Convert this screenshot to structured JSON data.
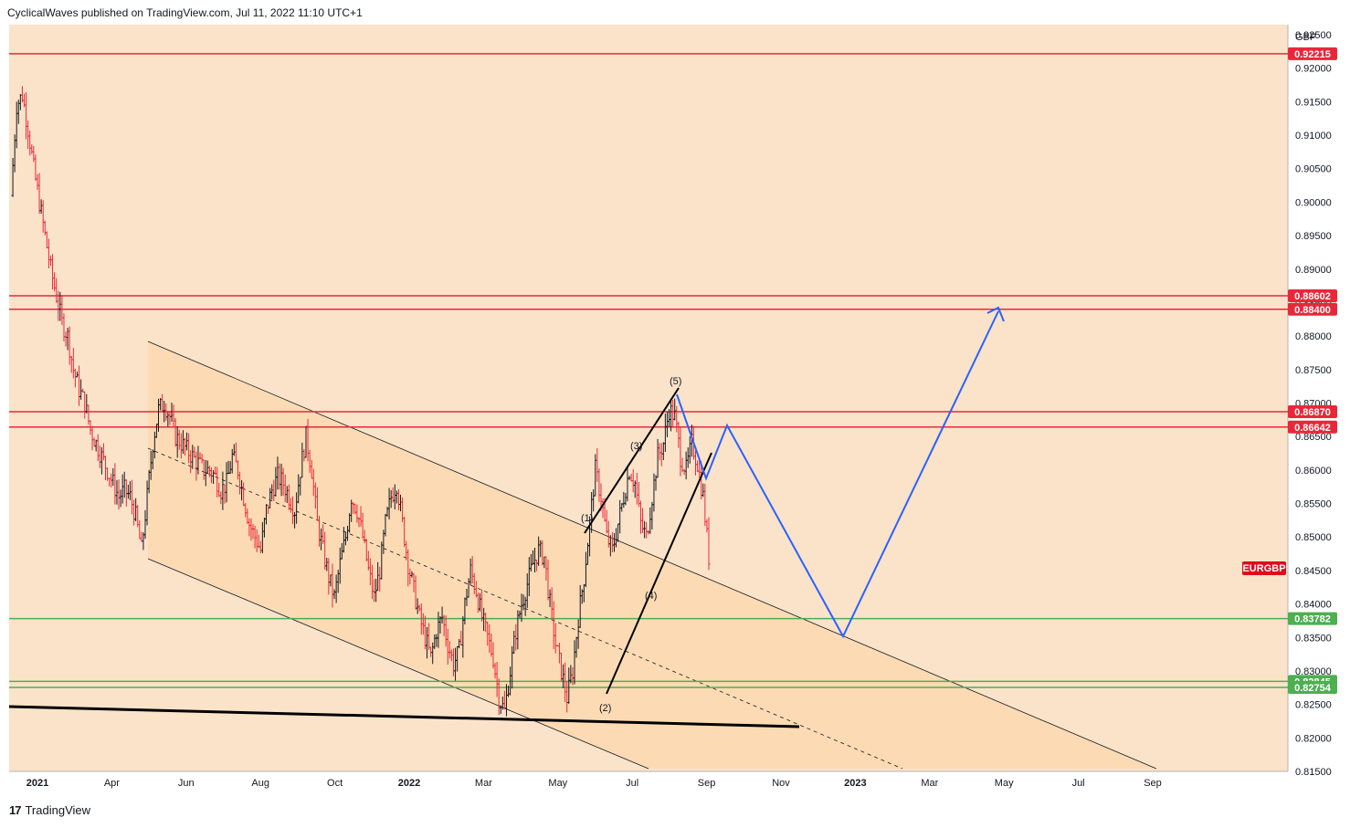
{
  "header": {
    "attribution": "CyclicalWaves published on TradingView.com, Jul 11, 2022 11:10 UTC+1"
  },
  "footer": {
    "logo_mark": "17",
    "brand": "TradingView"
  },
  "colors": {
    "background": "#fbe3c9",
    "channel_fill": "#fcd9b0",
    "resistance": "#e8283a",
    "support": "#4caf50",
    "projection": "#2962ff",
    "candle_up": "#131722",
    "candle_down": "#e8283a",
    "symbol_tag": "#e00a1a"
  },
  "chart_data": {
    "type": "ohlc",
    "symbol": "EURGBP",
    "currency": "GBP",
    "x_ticks": [
      {
        "label": "2021",
        "bold": true
      },
      {
        "label": "Apr"
      },
      {
        "label": "Jun"
      },
      {
        "label": "Aug"
      },
      {
        "label": "Oct"
      },
      {
        "label": "2022",
        "bold": true
      },
      {
        "label": "Mar"
      },
      {
        "label": "May"
      },
      {
        "label": "Jul"
      },
      {
        "label": "Sep"
      },
      {
        "label": "Nov"
      },
      {
        "label": "2023",
        "bold": true
      },
      {
        "label": "Mar"
      },
      {
        "label": "May"
      },
      {
        "label": "Jul"
      },
      {
        "label": "Sep"
      }
    ],
    "y_ticks": [
      "0.92500",
      "0.92000",
      "0.91500",
      "0.91000",
      "0.90500",
      "0.90000",
      "0.89500",
      "0.89000",
      "0.88500",
      "0.88000",
      "0.87500",
      "0.87000",
      "0.86500",
      "0.86000",
      "0.85500",
      "0.85000",
      "0.84500",
      "0.84000",
      "0.83500",
      "0.83000",
      "0.82500",
      "0.82000",
      "0.81500"
    ],
    "ylim": [
      0.815,
      0.9265
    ],
    "resistance_levels": [
      "0.92215",
      "0.88602",
      "0.88400",
      "0.86870",
      "0.86642"
    ],
    "support_levels": [
      "0.83782",
      "0.82845",
      "0.82754"
    ],
    "wave_labels": [
      "(1)",
      "(2)",
      "(3)",
      "(4)",
      "(5)"
    ],
    "price_series": [
      0.901,
      0.9145,
      0.916,
      0.911,
      0.905,
      0.9,
      0.895,
      0.89,
      0.886,
      0.882,
      0.88,
      0.875,
      0.872,
      0.87,
      0.866,
      0.864,
      0.862,
      0.86,
      0.858,
      0.856,
      0.857,
      0.856,
      0.853,
      0.848,
      0.856,
      0.864,
      0.869,
      0.87,
      0.868,
      0.865,
      0.864,
      0.863,
      0.862,
      0.861,
      0.86,
      0.86,
      0.859,
      0.857,
      0.858,
      0.862,
      0.86,
      0.856,
      0.852,
      0.85,
      0.848,
      0.854,
      0.857,
      0.859,
      0.858,
      0.856,
      0.854,
      0.86,
      0.865,
      0.86,
      0.852,
      0.848,
      0.844,
      0.841,
      0.846,
      0.85,
      0.856,
      0.854,
      0.85,
      0.845,
      0.841,
      0.845,
      0.852,
      0.856,
      0.858,
      0.852,
      0.846,
      0.842,
      0.838,
      0.835,
      0.832,
      0.836,
      0.838,
      0.834,
      0.831,
      0.833,
      0.84,
      0.845,
      0.842,
      0.838,
      0.835,
      0.832,
      0.826,
      0.824,
      0.83,
      0.836,
      0.84,
      0.843,
      0.846,
      0.848,
      0.847,
      0.84,
      0.834,
      0.83,
      0.826,
      0.83,
      0.838,
      0.844,
      0.852,
      0.86,
      0.856,
      0.85,
      0.848,
      0.852,
      0.856,
      0.86,
      0.858,
      0.852,
      0.85,
      0.856,
      0.862,
      0.864,
      0.869,
      0.868,
      0.862,
      0.86,
      0.864,
      0.861,
      0.856,
      0.847
    ]
  },
  "markers": {
    "eurgbp_tag": "EURGBP",
    "currency_label": "GBP"
  }
}
